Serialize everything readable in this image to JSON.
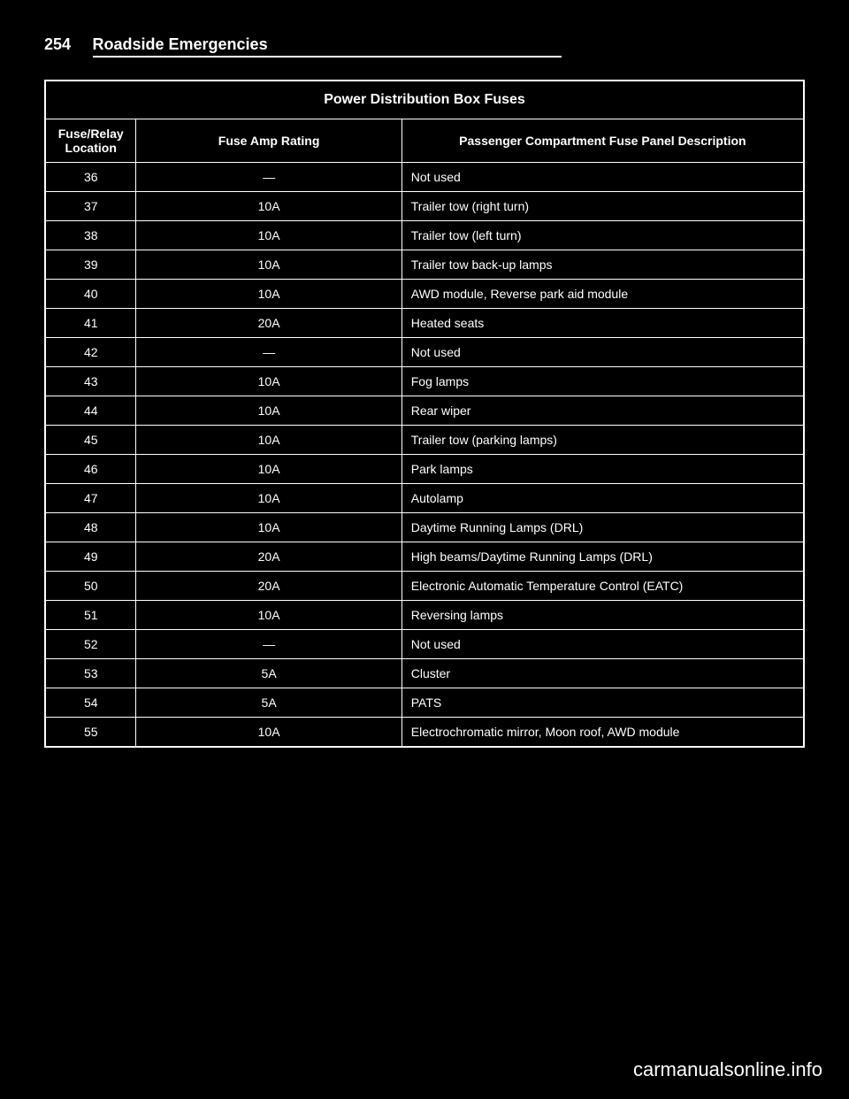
{
  "page_number": "254",
  "chapter_title": "Roadside Emergencies",
  "table": {
    "title": "Power Distribution Box Fuses",
    "columns": [
      "Fuse/Relay Location",
      "Fuse Amp Rating",
      "Passenger Compartment Fuse Panel Description"
    ],
    "rows": [
      [
        "36",
        "—",
        "Not used"
      ],
      [
        "37",
        "10A",
        "Trailer tow (right turn)"
      ],
      [
        "38",
        "10A",
        "Trailer tow (left turn)"
      ],
      [
        "39",
        "10A",
        "Trailer tow back-up lamps"
      ],
      [
        "40",
        "10A",
        "AWD module, Reverse park aid module"
      ],
      [
        "41",
        "20A",
        "Heated seats"
      ],
      [
        "42",
        "—",
        "Not used"
      ],
      [
        "43",
        "10A",
        "Fog lamps"
      ],
      [
        "44",
        "10A",
        "Rear wiper"
      ],
      [
        "45",
        "10A",
        "Trailer tow (parking lamps)"
      ],
      [
        "46",
        "10A",
        "Park lamps"
      ],
      [
        "47",
        "10A",
        "Autolamp"
      ],
      [
        "48",
        "10A",
        "Daytime Running Lamps (DRL)"
      ],
      [
        "49",
        "20A",
        "High beams/Daytime Running Lamps (DRL)"
      ],
      [
        "50",
        "20A",
        "Electronic Automatic Temperature Control (EATC)"
      ],
      [
        "51",
        "10A",
        "Reversing lamps"
      ],
      [
        "52",
        "—",
        "Not used"
      ],
      [
        "53",
        "5A",
        "Cluster"
      ],
      [
        "54",
        "5A",
        "PATS"
      ],
      [
        "55",
        "10A",
        "Electrochromatic mirror, Moon roof, AWD module"
      ]
    ]
  },
  "watermark": "carmanualsonline.info",
  "styling": {
    "background_color": "#000000",
    "text_color": "#ffffff",
    "border_color": "#ffffff",
    "font_family": "Arial",
    "title_fontsize": 16,
    "body_fontsize": 14,
    "header_fontsize": 18
  }
}
